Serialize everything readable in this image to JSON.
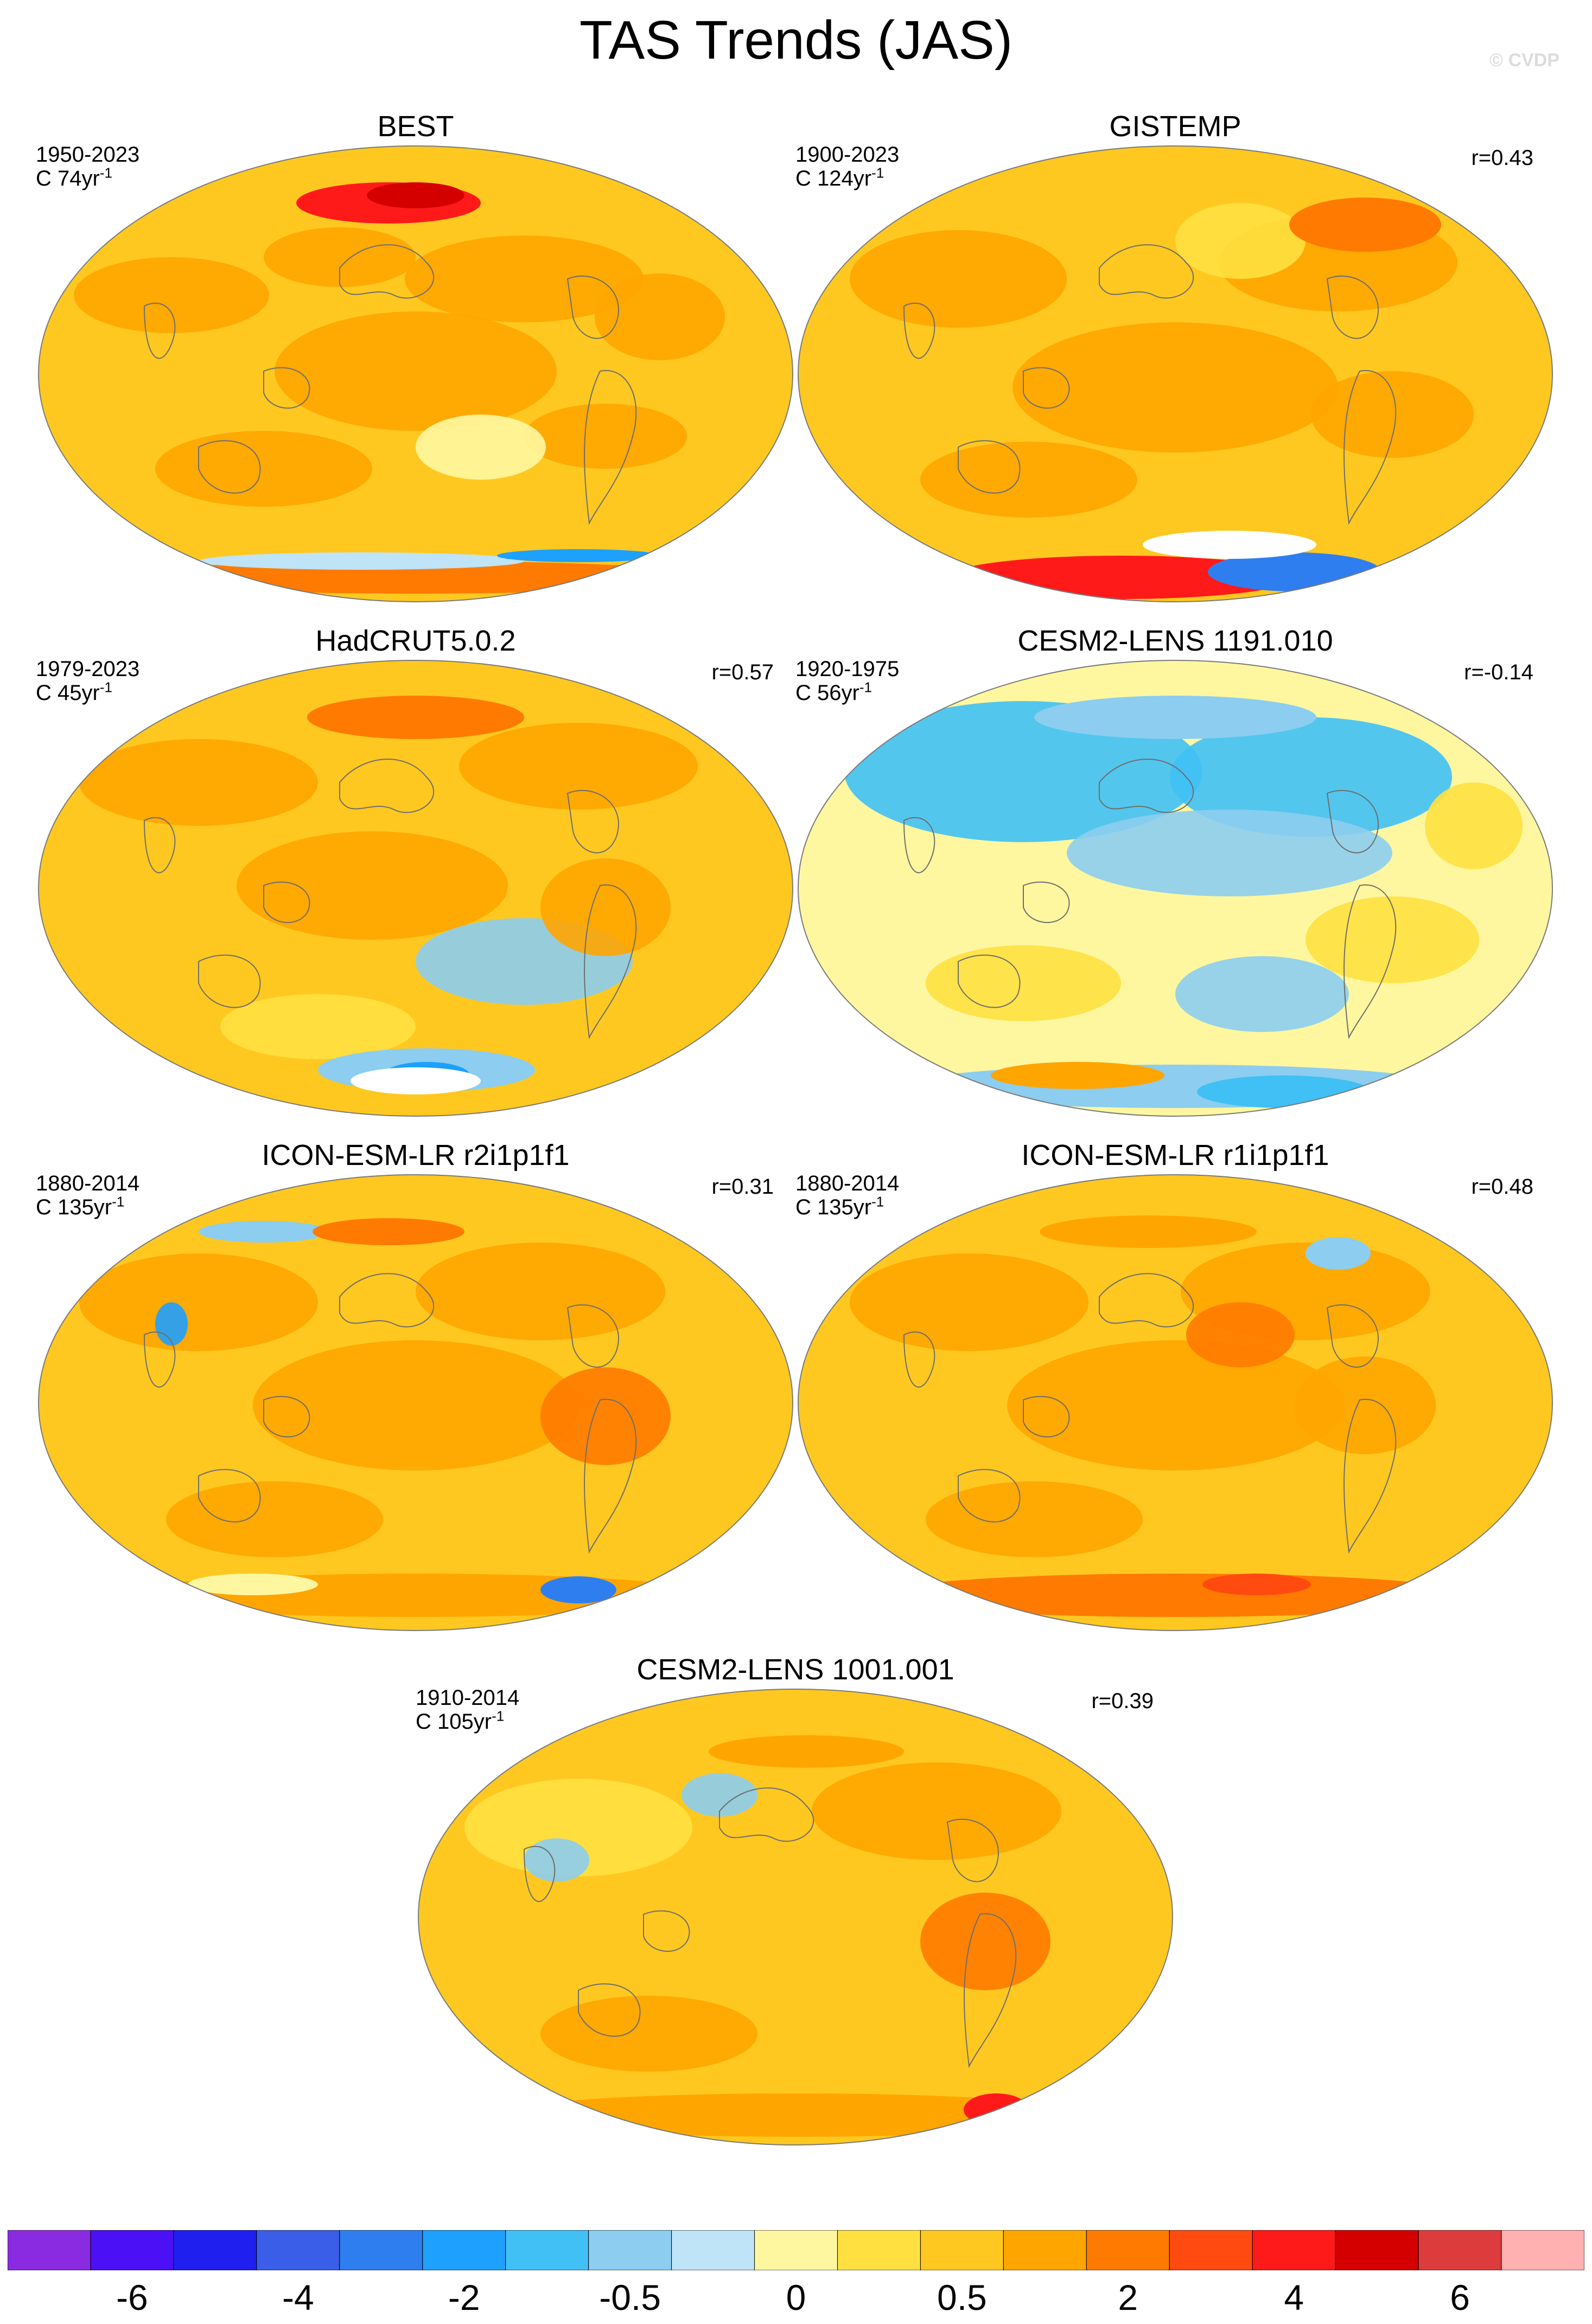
{
  "title": "TAS Trends (JAS)",
  "watermark": "© CVDP",
  "panels": [
    {
      "title": "BEST",
      "years": "1950-2023",
      "coverage": "C 74yr",
      "corr": "",
      "style": "best"
    },
    {
      "title": "GISTEMP",
      "years": "1900-2023",
      "coverage": "C 124yr",
      "corr": "r=0.43",
      "style": "gistemp"
    },
    {
      "title": "HadCRUT5.0.2",
      "years": "1979-2023",
      "coverage": "C 45yr",
      "corr": "r=0.57",
      "style": "hadcrut"
    },
    {
      "title": "CESM2-LENS 1191.010",
      "years": "1920-1975",
      "coverage": "C 56yr",
      "corr": "r=-0.14",
      "style": "cesm_cool"
    },
    {
      "title": "ICON-ESM-LR r2i1p1f1",
      "years": "1880-2014",
      "coverage": "C 135yr",
      "corr": "r=0.31",
      "style": "icon2"
    },
    {
      "title": "ICON-ESM-LR r1i1p1f1",
      "years": "1880-2014",
      "coverage": "C 135yr",
      "corr": "r=0.48",
      "style": "icon1"
    },
    {
      "title": "CESM2-LENS 1001.001",
      "years": "1910-2014",
      "coverage": "C 105yr",
      "corr": "r=0.39",
      "style": "cesm_warm"
    }
  ],
  "colorbar": {
    "colors": [
      "#8a2be2",
      "#4b10f5",
      "#1f1ff0",
      "#3a5ee8",
      "#2f7ef0",
      "#1ea0ff",
      "#40c0f5",
      "#8ccdf0",
      "#bfe3f7",
      "#fff7a0",
      "#ffe040",
      "#ffc820",
      "#ffa500",
      "#ff7a00",
      "#ff4a10",
      "#ff1a1a",
      "#d40000",
      "#dc3c3c",
      "#ffb0b0"
    ],
    "ticks": [
      {
        "label": "-6",
        "boundary": 1
      },
      {
        "label": "-4",
        "boundary": 3
      },
      {
        "label": "-2",
        "boundary": 5
      },
      {
        "label": "-0.5",
        "boundary": 7
      },
      {
        "label": "0",
        "boundary": 9
      },
      {
        "label": "0.5",
        "boundary": 11
      },
      {
        "label": "2",
        "boundary": 13
      },
      {
        "label": "4",
        "boundary": 15
      },
      {
        "label": "6",
        "boundary": 17
      }
    ]
  }
}
